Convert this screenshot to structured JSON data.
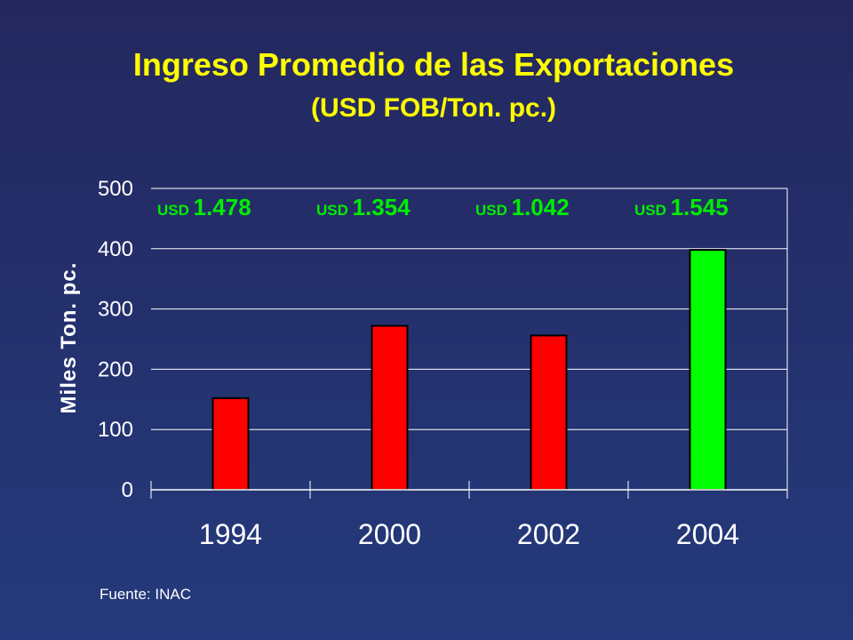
{
  "chart_data": {
    "type": "bar",
    "title": "Ingreso Promedio de las Exportaciones",
    "subtitle": "(USD FOB/Ton. pc.)",
    "ylabel": "Miles Ton. pc.",
    "xlabel": "",
    "categories": [
      "1994",
      "2000",
      "2002",
      "2004"
    ],
    "values": [
      152,
      272,
      256,
      398
    ],
    "colors": [
      "#ff0000",
      "#ff0000",
      "#ff0000",
      "#00ff00"
    ],
    "ylim": [
      0,
      500
    ],
    "yticks": [
      "0",
      "100",
      "200",
      "300",
      "400",
      "500"
    ],
    "grid": true,
    "annotations": [
      {
        "currency": "USD",
        "value": "1.478"
      },
      {
        "currency": "USD",
        "value": "1.354"
      },
      {
        "currency": "USD",
        "value": "1.042"
      },
      {
        "currency": "USD",
        "value": "1.545"
      }
    ]
  },
  "footer": {
    "source": "Fuente: INAC"
  }
}
